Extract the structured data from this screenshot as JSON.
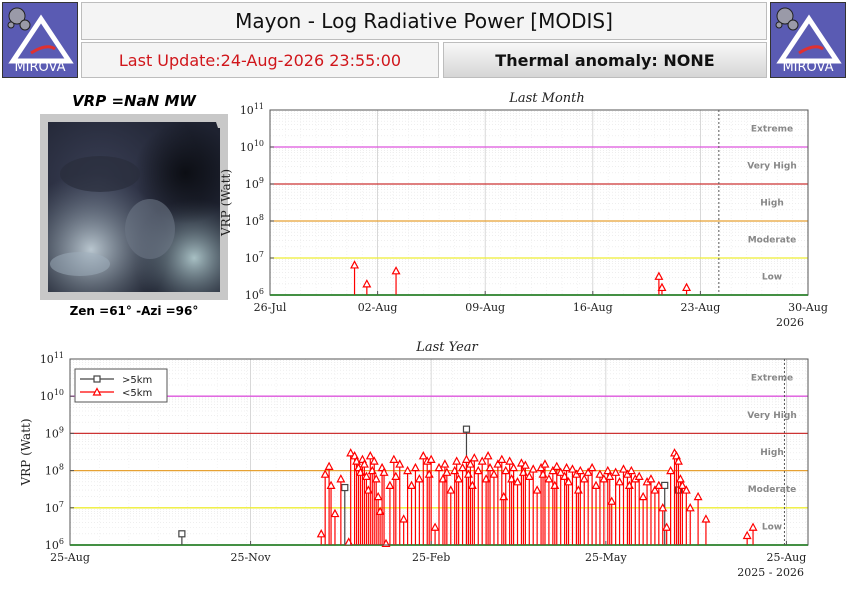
{
  "header": {
    "title": "Mayon - Log Radiative Power [MODIS]",
    "last_update": "Last Update:24-Aug-2026 23:55:00",
    "thermal_anomaly": "Thermal anomaly:  NONE",
    "logo_text": "MIROVA"
  },
  "thumbnail": {
    "vrp_label": "VRP =NaN MW",
    "angles_label": "Zen =61° -Azi =96°"
  },
  "colors": {
    "low": "#33cc33",
    "moderate": "#eeee33",
    "high": "#e6a133",
    "very_high": "#cc3333",
    "extreme": "#dd55dd",
    "below5": "#ff0000",
    "above5": "#444444",
    "logo_bg": "#5a5bb3"
  },
  "chart_data": [
    {
      "id": "month",
      "type": "scatter",
      "title": "Last Month",
      "ylabel": "VRP (Watt)",
      "yscale": "log",
      "ylim": [
        1000000,
        100000000000
      ],
      "xlim_days": [
        0,
        35
      ],
      "x_ticks": [
        {
          "d": 0,
          "label": "26-Jul"
        },
        {
          "d": 7,
          "label": "02-Aug"
        },
        {
          "d": 14,
          "label": "09-Aug"
        },
        {
          "d": 21,
          "label": "16-Aug"
        },
        {
          "d": 28,
          "label": "23-Aug"
        },
        {
          "d": 35,
          "label": "30-Aug"
        }
      ],
      "year_label": "2026",
      "thresholds": [
        {
          "name": "Low",
          "value": 1000000,
          "color": "#33cc33"
        },
        {
          "name": "Moderate",
          "value": 10000000,
          "color": "#eeee33"
        },
        {
          "name": "High",
          "value": 100000000,
          "color": "#e6a133"
        },
        {
          "name": "Very High",
          "value": 1000000000,
          "color": "#cc3333"
        },
        {
          "name": "Extreme",
          "value": 10000000000,
          "color": "#dd55dd"
        }
      ],
      "zone_labels": [
        "Low",
        "Moderate",
        "High",
        "Very High",
        "Extreme"
      ],
      "current_day": 29.2,
      "series": [
        {
          "name": "<5km",
          "marker": "triangle",
          "color": "#ff0000",
          "x_days": [
            5.5,
            6.3,
            8.2,
            25.3,
            25.5,
            27.1
          ],
          "y": [
            6500000,
            2000000,
            4500000,
            3200000,
            1600000,
            1600000
          ]
        }
      ]
    },
    {
      "id": "year",
      "type": "scatter",
      "title": "Last Year",
      "ylabel": "VRP (Watt)",
      "yscale": "log",
      "ylim": [
        1000000,
        100000000000
      ],
      "xlim_days": [
        0,
        376
      ],
      "x_ticks": [
        {
          "d": 0,
          "label": "25-Aug"
        },
        {
          "d": 92,
          "label": "25-Nov"
        },
        {
          "d": 184,
          "label": "25-Feb"
        },
        {
          "d": 273,
          "label": "25-May"
        },
        {
          "d": 365,
          "label": "25-Aug"
        }
      ],
      "year_label": "2025 - 2026",
      "legend": [
        {
          "label": ">5km",
          "marker": "square",
          "color": "#444444"
        },
        {
          "label": "<5km",
          "marker": "triangle",
          "color": "#ff0000"
        }
      ],
      "thresholds": [
        {
          "name": "Low",
          "value": 1000000,
          "color": "#33cc33"
        },
        {
          "name": "Moderate",
          "value": 10000000,
          "color": "#eeee33"
        },
        {
          "name": "High",
          "value": 100000000,
          "color": "#e6a133"
        },
        {
          "name": "Very High",
          "value": 1000000000,
          "color": "#cc3333"
        },
        {
          "name": "Extreme",
          "value": 10000000000,
          "color": "#dd55dd"
        }
      ],
      "zone_labels": [
        "Low",
        "Moderate",
        "High",
        "Very High",
        "Extreme"
      ],
      "current_day": 364,
      "series": [
        {
          "name": ">5km",
          "marker": "square",
          "color": "#444444",
          "x_days": [
            57,
            140,
            202,
            303,
            310
          ],
          "y": [
            2000000,
            35000000,
            1300000000,
            40000000,
            30000000
          ]
        },
        {
          "name": "<5km",
          "marker": "triangle",
          "color": "#ff0000",
          "x_days": [
            128,
            130,
            132,
            133,
            135,
            138,
            142,
            143,
            145,
            146,
            147,
            148,
            149,
            150,
            151,
            152,
            153,
            154,
            155,
            156,
            157,
            158,
            159,
            160,
            161,
            163,
            165,
            166,
            168,
            170,
            172,
            174,
            176,
            178,
            180,
            182,
            183,
            184,
            186,
            188,
            190,
            191,
            192,
            194,
            196,
            197,
            198,
            200,
            202,
            203,
            204,
            205,
            206,
            208,
            210,
            212,
            213,
            214,
            216,
            218,
            220,
            221,
            222,
            224,
            225,
            226,
            228,
            230,
            231,
            232,
            234,
            236,
            238,
            240,
            241,
            242,
            244,
            246,
            247,
            248,
            250,
            252,
            253,
            254,
            256,
            258,
            259,
            260,
            262,
            264,
            266,
            268,
            270,
            272,
            274,
            275,
            276,
            278,
            280,
            282,
            284,
            285,
            286,
            288,
            290,
            292,
            294,
            296,
            298,
            300,
            302,
            304,
            306,
            308,
            309,
            310,
            311,
            312,
            314,
            316,
            320,
            324,
            345,
            348
          ],
          "y": [
            2000000,
            80000000,
            130000000,
            40000000,
            7000000,
            60000000,
            1200000,
            300000000,
            250000000,
            180000000,
            120000000,
            90000000,
            200000000,
            150000000,
            70000000,
            30000000,
            250000000,
            100000000,
            180000000,
            60000000,
            20000000,
            8000000,
            120000000,
            90000000,
            1100000,
            40000000,
            200000000,
            70000000,
            150000000,
            5000000,
            100000000,
            40000000,
            120000000,
            60000000,
            250000000,
            180000000,
            80000000,
            200000000,
            3000000,
            120000000,
            60000000,
            150000000,
            90000000,
            30000000,
            100000000,
            180000000,
            60000000,
            120000000,
            200000000,
            80000000,
            150000000,
            40000000,
            220000000,
            100000000,
            180000000,
            60000000,
            250000000,
            120000000,
            80000000,
            150000000,
            200000000,
            20000000,
            100000000,
            180000000,
            60000000,
            120000000,
            50000000,
            160000000,
            90000000,
            140000000,
            70000000,
            110000000,
            30000000,
            120000000,
            80000000,
            150000000,
            60000000,
            100000000,
            40000000,
            130000000,
            90000000,
            70000000,
            120000000,
            50000000,
            110000000,
            80000000,
            30000000,
            100000000,
            60000000,
            90000000,
            120000000,
            40000000,
            80000000,
            60000000,
            100000000,
            70000000,
            15000000,
            90000000,
            50000000,
            110000000,
            80000000,
            40000000,
            100000000,
            60000000,
            70000000,
            20000000,
            50000000,
            60000000,
            30000000,
            40000000,
            10000000,
            3000000,
            100000000,
            300000000,
            250000000,
            180000000,
            60000000,
            40000000,
            30000000,
            10000000,
            20000000,
            5000000,
            1800000,
            3000000
          ]
        }
      ]
    }
  ]
}
